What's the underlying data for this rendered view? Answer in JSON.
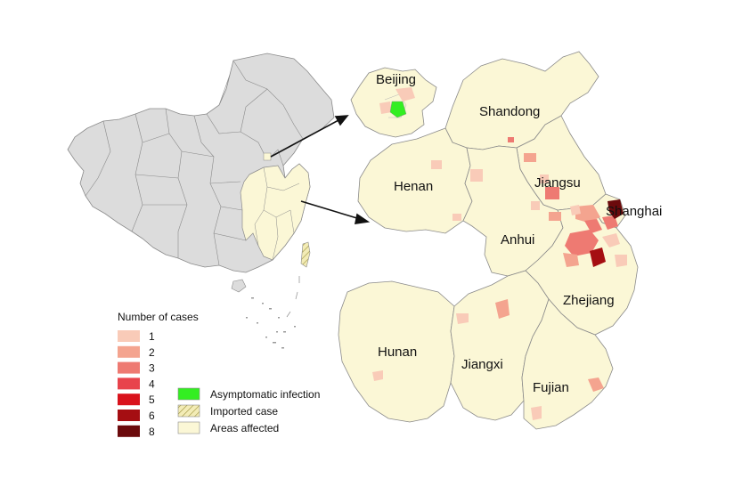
{
  "legend": {
    "title": "Number of cases",
    "case_levels": [
      {
        "label": "1",
        "color": "#f9cbb8"
      },
      {
        "label": "2",
        "color": "#f4a48f"
      },
      {
        "label": "3",
        "color": "#ee7a72"
      },
      {
        "label": "4",
        "color": "#e8434c"
      },
      {
        "label": "5",
        "color": "#d9121c"
      },
      {
        "label": "6",
        "color": "#a50e12"
      },
      {
        "label": "8",
        "color": "#6b0a0c"
      }
    ],
    "symbols": [
      {
        "label": "Asymptomatic infection",
        "color": "#33ee22",
        "pattern": "solid"
      },
      {
        "label": "Imported case",
        "color": "#f3ecb6",
        "pattern": "hatch"
      },
      {
        "label": "Areas affected",
        "color": "#fbf7d6",
        "pattern": "solid"
      }
    ]
  },
  "provinces": {
    "beijing": "Beijing",
    "shandong": "Shandong",
    "henan": "Henan",
    "jiangsu": "Jiangsu",
    "shanghai": "Shanghai",
    "anhui": "Anhui",
    "zhejiang": "Zhejiang",
    "hunan": "Hunan",
    "jiangxi": "Jiangxi",
    "fujian": "Fujian"
  },
  "colors": {
    "affected_fill": "#fbf7d6",
    "unaffected_fill": "#dcdcdc",
    "border": "#8a8a8a",
    "asymptomatic": "#33ee22"
  }
}
